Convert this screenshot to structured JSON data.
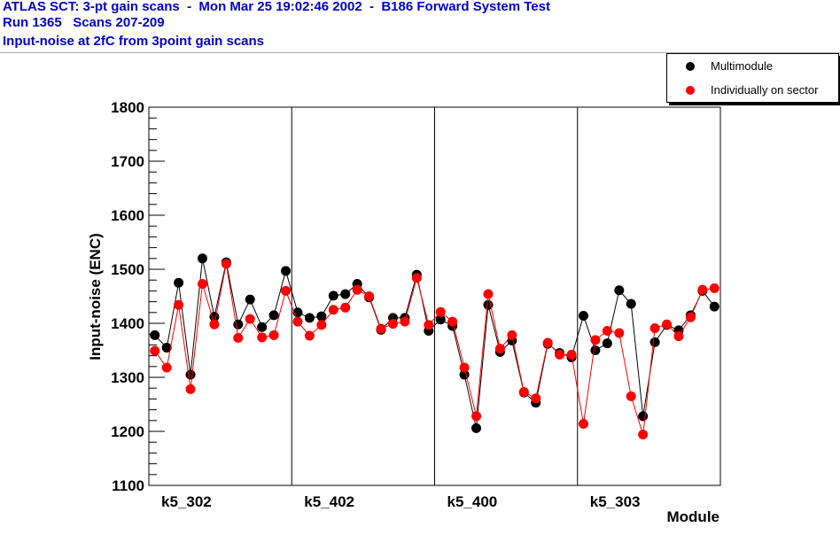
{
  "header": {
    "line1": "ATLAS SCT: 3-pt gain scans  -  Mon Mar 25 19:02:46 2002  -  B186 Forward System Test",
    "line2": "Run 1365   Scans 207-209",
    "line3": "Input-noise at 2fC from 3point gain scans"
  },
  "legend": {
    "entries": [
      {
        "label": "Multimodule",
        "color": "#000000"
      },
      {
        "label": "Individually on sector",
        "color": "#ff0000"
      }
    ]
  },
  "chart_data": {
    "type": "scatter",
    "title": "Input-noise at 2fC from 3point gain scans",
    "xlabel": "Module",
    "ylabel": "Input-noise (ENC)",
    "ylim": [
      1100,
      1800
    ],
    "yticks": [
      1100,
      1200,
      1300,
      1400,
      1500,
      1600,
      1700,
      1800
    ],
    "categories": [
      "k5_302",
      "k5_402",
      "k5_400",
      "k5_303"
    ],
    "points_per_category": 12,
    "connected": true,
    "grid": false,
    "legend_position": "top-right",
    "series": [
      {
        "name": "Multimodule",
        "color": "#000000",
        "values": [
          1378,
          1355,
          1475,
          1305,
          1520,
          1412,
          1513,
          1398,
          1444,
          1393,
          1415,
          1497,
          1420,
          1410,
          1413,
          1451,
          1454,
          1473,
          1448,
          1388,
          1410,
          1410,
          1490,
          1386,
          1407,
          1395,
          1305,
          1206,
          1434,
          1347,
          1368,
          1272,
          1253,
          1362,
          1345,
          1337,
          1414,
          1350,
          1363,
          1461,
          1436,
          1228,
          1365,
          1397,
          1387,
          1415,
          1460,
          1431
        ]
      },
      {
        "name": "Individually on sector",
        "color": "#ff0000",
        "values": [
          1349,
          1318,
          1434,
          1278,
          1473,
          1398,
          1510,
          1373,
          1408,
          1374,
          1378,
          1460,
          1403,
          1377,
          1397,
          1425,
          1429,
          1462,
          1450,
          1390,
          1399,
          1403,
          1484,
          1397,
          1421,
          1403,
          1318,
          1228,
          1454,
          1353,
          1378,
          1273,
          1261,
          1364,
          1342,
          1342,
          1214,
          1369,
          1386,
          1382,
          1265,
          1194,
          1391,
          1398,
          1376,
          1411,
          1462,
          1465
        ]
      }
    ]
  }
}
